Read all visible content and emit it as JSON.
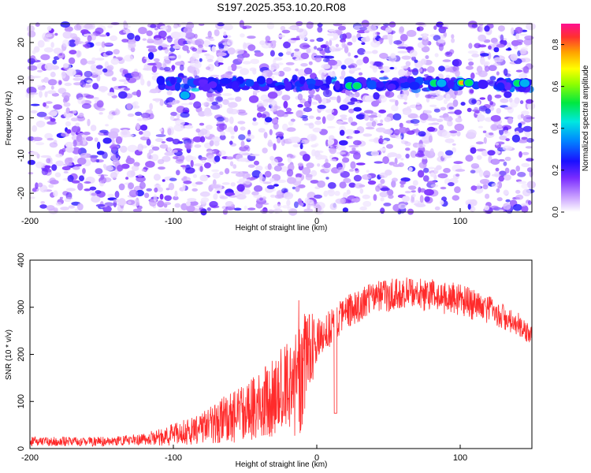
{
  "title": "S197.2025.353.10.20.R08",
  "chart_data": [
    {
      "type": "heatmap",
      "name": "spectrogram",
      "xlabel": "Height of straight line (km)",
      "ylabel": "Frequency (Hz)",
      "xlim": [
        -200,
        150
      ],
      "ylim": [
        -25,
        25
      ],
      "xticks": [
        "-200",
        "-100",
        "0",
        "100"
      ],
      "xtick_values": [
        -200,
        -100,
        0,
        100
      ],
      "yticks": [
        "20",
        "10",
        "0",
        "-10",
        "-20"
      ],
      "ytick_values": [
        20,
        10,
        0,
        -10,
        -20
      ],
      "ridge_frequency_hz": 9,
      "hotspots": [
        {
          "x": -92,
          "y": 6,
          "amplitude": 0.45
        },
        {
          "x": 23,
          "y": 8.5,
          "amplitude": 0.6
        },
        {
          "x": 28,
          "y": 8.5,
          "amplitude": 0.5
        },
        {
          "x": 82,
          "y": 9.2,
          "amplitude": 0.55
        },
        {
          "x": 87,
          "y": 9.2,
          "amplitude": 0.45
        },
        {
          "x": 101,
          "y": 9.3,
          "amplitude": 0.85
        },
        {
          "x": 106,
          "y": 9.3,
          "amplitude": 0.6
        },
        {
          "x": 140,
          "y": 9.2,
          "amplitude": 0.5
        },
        {
          "x": 145,
          "y": 9.2,
          "amplitude": 0.45
        }
      ],
      "colorbar": {
        "label": "Normalized spectral amplitude",
        "range": [
          0,
          0.9
        ],
        "ticks": [
          "0.0",
          "0.2",
          "0.4",
          "0.6",
          "0.8"
        ],
        "tick_values": [
          0.0,
          0.2,
          0.4,
          0.6,
          0.8
        ]
      }
    },
    {
      "type": "line",
      "name": "snr",
      "xlabel": "Height of straight line (km)",
      "ylabel": "SNR (10 * v/v)",
      "xlim": [
        -200,
        150
      ],
      "ylim": [
        0,
        400
      ],
      "xticks": [
        "-200",
        "-100",
        "0",
        "100"
      ],
      "xtick_values": [
        -200,
        -100,
        0,
        100
      ],
      "yticks": [
        "400",
        "300",
        "200",
        "100",
        "0"
      ],
      "ytick_values": [
        400,
        300,
        200,
        100,
        0
      ],
      "color": "#ff2a2a",
      "envelope": {
        "x": [
          -200,
          -150,
          -120,
          -100,
          -80,
          -60,
          -40,
          -20,
          -12,
          -5,
          0,
          10,
          20,
          40,
          60,
          80,
          100,
          120,
          140,
          150
        ],
        "mean": [
          15,
          15,
          20,
          30,
          45,
          65,
          90,
          130,
          180,
          200,
          230,
          260,
          290,
          320,
          330,
          325,
          315,
          295,
          265,
          240
        ],
        "spread": [
          10,
          10,
          12,
          25,
          35,
          55,
          70,
          100,
          160,
          90,
          50,
          40,
          35,
          35,
          35,
          35,
          35,
          30,
          25,
          20
        ]
      }
    }
  ]
}
